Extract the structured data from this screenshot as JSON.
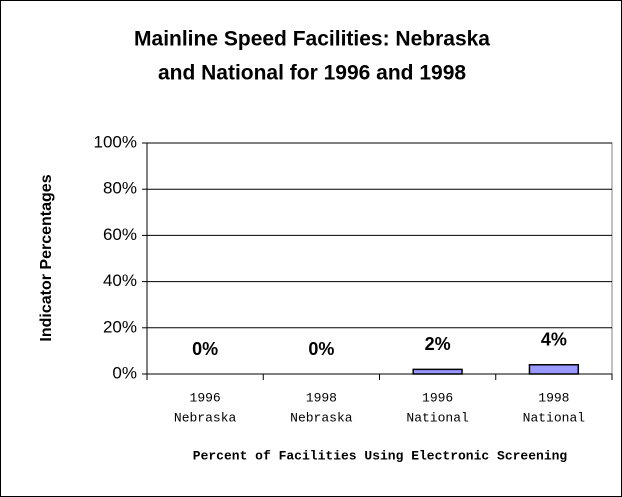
{
  "chart_data": {
    "type": "bar",
    "title": [
      "Mainline Speed Facilities: Nebraska",
      "and National for 1996 and 1998"
    ],
    "categories": [
      [
        "1996",
        "Nebraska"
      ],
      [
        "1998",
        "Nebraska"
      ],
      [
        "1996",
        "National"
      ],
      [
        "1998",
        "National"
      ]
    ],
    "values": [
      0,
      0,
      2,
      4
    ],
    "value_labels": [
      "0%",
      "0%",
      "2%",
      "4%"
    ],
    "color": "#9999ff",
    "ylim": [
      0,
      100
    ],
    "yticks": [
      {
        "value": 0,
        "label": "0%"
      },
      {
        "value": 20,
        "label": "20%"
      },
      {
        "value": 40,
        "label": "40%"
      },
      {
        "value": 60,
        "label": "60%"
      },
      {
        "value": 80,
        "label": "80%"
      },
      {
        "value": 100,
        "label": "100%"
      }
    ],
    "grid": true,
    "ylabel": "Indicator Percentages",
    "xlabel": "Percent of Facilities Using Electronic Screening"
  }
}
